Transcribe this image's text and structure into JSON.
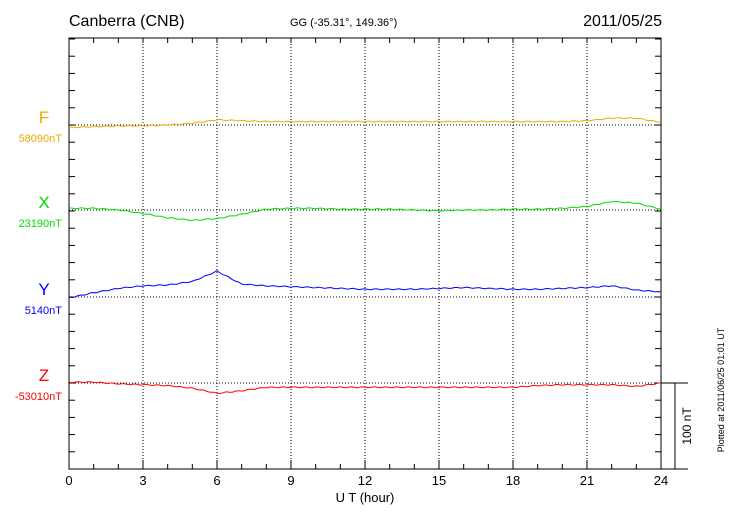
{
  "chart_data": {
    "type": "line",
    "title": "Canberra (CNB)",
    "subtitle": "GG (-35.31°, 149.36°)",
    "date": "2011/05/25",
    "xlabel": "U T (hour)",
    "xlim": [
      0,
      24
    ],
    "xticks": [
      "0",
      "3",
      "6",
      "9",
      "12",
      "15",
      "18",
      "21",
      "24"
    ],
    "scale_label": "100 nT",
    "scale_nT": 100,
    "footer": "Plotted at 2011/06/25 01:01 UT",
    "grid": true,
    "x": [
      0,
      1,
      2,
      3,
      4,
      5,
      6,
      7,
      8,
      9,
      10,
      11,
      12,
      13,
      14,
      15,
      16,
      17,
      18,
      19,
      20,
      21,
      22,
      23,
      24
    ],
    "series": [
      {
        "name": "F",
        "baseline_label": "58090nT",
        "color": "#f0a800",
        "values": [
          -3,
          -2,
          -1,
          -1,
          0,
          2,
          6,
          5,
          4,
          4,
          4,
          4,
          4,
          4,
          4,
          4,
          4,
          4,
          4,
          4,
          4,
          5,
          8,
          8,
          3
        ]
      },
      {
        "name": "X",
        "baseline_label": "23190nT",
        "color": "#00dd00",
        "values": [
          2,
          2,
          0,
          -4,
          -9,
          -12,
          -10,
          -5,
          1,
          2,
          2,
          1,
          1,
          1,
          0,
          -1,
          0,
          0,
          1,
          1,
          2,
          4,
          10,
          8,
          1
        ]
      },
      {
        "name": "Y",
        "baseline_label": "5140nT",
        "color": "#0000ff",
        "values": [
          -1,
          5,
          10,
          13,
          14,
          18,
          30,
          15,
          13,
          12,
          11,
          10,
          9,
          9,
          9,
          10,
          11,
          10,
          9,
          9,
          10,
          11,
          13,
          8,
          6
        ]
      },
      {
        "name": "Z",
        "baseline_label": "-53010nT",
        "color": "#ff0000",
        "values": [
          1,
          1,
          -1,
          -2,
          -3,
          -6,
          -12,
          -9,
          -5,
          -5,
          -5,
          -5,
          -5,
          -5,
          -5,
          -5,
          -5,
          -5,
          -5,
          -3,
          -2,
          -2,
          -2,
          -4,
          0
        ]
      }
    ]
  }
}
